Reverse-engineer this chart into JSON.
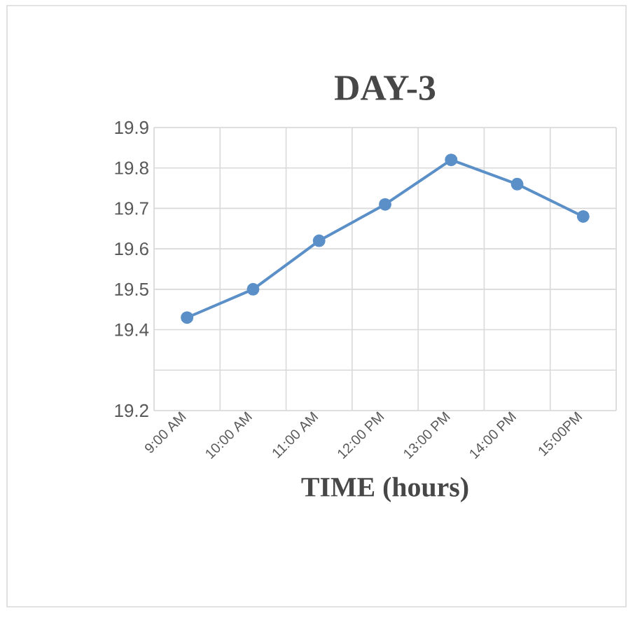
{
  "chart_data": {
    "type": "line",
    "title": "DAY-3",
    "xlabel": "TIME (hours)",
    "categories": [
      "9:00 AM",
      "10:00 AM",
      "11:00 AM",
      "12:00 PM",
      "13:00 PM",
      "14:00 PM",
      "15:00PM"
    ],
    "series": [
      {
        "color": "#5b8fc7",
        "values": [
          19.43,
          19.5,
          19.62,
          19.71,
          19.82,
          19.76,
          19.68
        ]
      }
    ],
    "ylim": [
      19.2,
      19.9
    ],
    "yticks": [
      19.2,
      {
        "value": 19.3,
        "label": null
      },
      19.4,
      19.5,
      19.6,
      19.7,
      19.8,
      19.9
    ],
    "grid": true,
    "marker": "circle",
    "line_style": "solid"
  }
}
